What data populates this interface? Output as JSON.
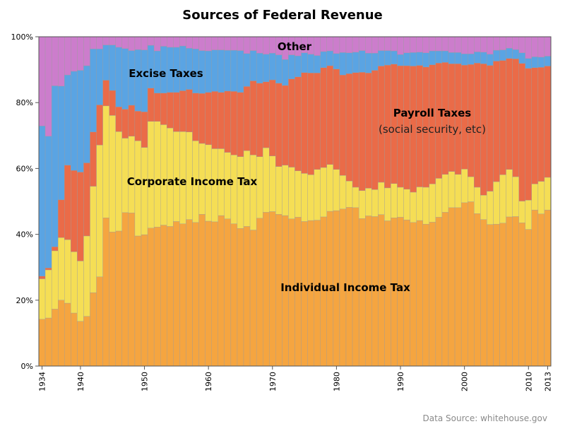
{
  "chart_data": {
    "type": "bar",
    "stacked": true,
    "title": "Sources of Federal Revenue",
    "source": "Data Source: whitehouse.gov",
    "x": [
      1934,
      1935,
      1936,
      1937,
      1938,
      1939,
      1940,
      1941,
      1942,
      1943,
      1944,
      1945,
      1946,
      1947,
      1948,
      1949,
      1950,
      1951,
      1952,
      1953,
      1954,
      1955,
      1956,
      1957,
      1958,
      1959,
      1960,
      1961,
      1962,
      1963,
      1964,
      1965,
      1966,
      1967,
      1968,
      1969,
      1970,
      1971,
      1972,
      1973,
      1974,
      1975,
      1976,
      1977,
      1978,
      1979,
      1980,
      1981,
      1982,
      1983,
      1984,
      1985,
      1986,
      1987,
      1988,
      1989,
      1990,
      1991,
      1992,
      1993,
      1994,
      1995,
      1996,
      1997,
      1998,
      1999,
      2000,
      2001,
      2002,
      2003,
      2004,
      2005,
      2006,
      2007,
      2008,
      2009,
      2010,
      2011,
      2012,
      2013
    ],
    "xticks": [
      "1934",
      "1940",
      "1950",
      "1960",
      "1970",
      "1980",
      "1990",
      "2000",
      "2010",
      "2013"
    ],
    "yticks": [
      "0%",
      "20%",
      "40%",
      "60%",
      "80%",
      "100%"
    ],
    "ylim": [
      0,
      100
    ],
    "series": [
      {
        "name": "Individual Income Tax",
        "color": "#f5a540",
        "values": [
          14.2,
          14.6,
          17.3,
          20.0,
          19.1,
          16.1,
          13.6,
          15.1,
          22.3,
          27.1,
          45.0,
          40.7,
          41.0,
          46.6,
          46.5,
          39.5,
          39.9,
          41.9,
          42.2,
          42.8,
          42.4,
          43.9,
          43.2,
          44.5,
          43.6,
          46.1,
          44.0,
          43.8,
          45.7,
          44.7,
          43.2,
          41.8,
          42.4,
          41.3,
          44.9,
          46.7,
          46.9,
          46.1,
          45.7,
          44.7,
          45.2,
          43.9,
          44.2,
          44.3,
          45.3,
          47.0,
          47.2,
          47.7,
          48.2,
          48.1,
          44.8,
          45.6,
          45.4,
          46.0,
          44.1,
          45.0,
          45.2,
          44.4,
          43.6,
          44.2,
          43.1,
          43.7,
          45.2,
          46.7,
          48.1,
          48.1,
          49.6,
          49.9,
          46.3,
          44.5,
          43.0,
          43.1,
          43.4,
          45.3,
          45.4,
          43.5,
          41.5,
          47.4,
          46.2,
          47.4
        ]
      },
      {
        "name": "Corporate Income Tax",
        "color": "#f5de55",
        "values": [
          12.3,
          14.6,
          17.7,
          19.0,
          19.3,
          18.6,
          18.3,
          24.4,
          32.3,
          40.0,
          34.0,
          35.4,
          30.2,
          22.6,
          23.3,
          28.9,
          26.5,
          32.4,
          32.1,
          30.5,
          29.9,
          27.3,
          28.0,
          26.6,
          24.8,
          21.5,
          23.2,
          22.2,
          20.3,
          20.2,
          20.9,
          21.8,
          23.0,
          22.8,
          18.7,
          19.6,
          16.9,
          14.5,
          15.3,
          15.7,
          14.1,
          14.6,
          13.9,
          15.4,
          15.0,
          14.2,
          12.5,
          10.2,
          8.0,
          6.2,
          8.5,
          8.4,
          8.2,
          9.8,
          10.0,
          10.4,
          9.1,
          9.3,
          9.2,
          10.2,
          11.2,
          11.6,
          11.8,
          11.5,
          11.0,
          10.1,
          10.2,
          7.6,
          8.0,
          7.4,
          10.1,
          12.9,
          14.7,
          14.4,
          12.1,
          6.6,
          8.9,
          7.9,
          9.9,
          9.9
        ]
      },
      {
        "name": "Payroll Taxes",
        "color": "#ea6b48",
        "values": [
          0.8,
          0.6,
          1.2,
          11.5,
          22.6,
          24.7,
          27.0,
          22.2,
          16.5,
          12.2,
          7.8,
          7.6,
          7.5,
          8.8,
          9.4,
          9.0,
          10.8,
          10.1,
          8.6,
          9.6,
          10.8,
          11.9,
          12.4,
          12.9,
          14.5,
          15.2,
          15.9,
          17.4,
          17.1,
          18.6,
          19.3,
          19.5,
          19.5,
          22.5,
          22.3,
          20.0,
          23.1,
          25.3,
          24.2,
          26.8,
          28.5,
          30.6,
          30.9,
          29.3,
          30.3,
          30.0,
          30.5,
          30.5,
          32.6,
          34.8,
          35.9,
          35.0,
          36.2,
          35.3,
          37.3,
          36.3,
          36.9,
          37.5,
          38.3,
          36.9,
          36.5,
          36.2,
          35.0,
          34.0,
          32.7,
          33.6,
          31.6,
          34.1,
          37.7,
          39.9,
          38.2,
          36.6,
          34.7,
          33.7,
          35.8,
          41.8,
          40.0,
          35.3,
          34.6,
          33.8
        ]
      },
      {
        "name": "Excise Taxes",
        "color": "#5aa4e3",
        "values": [
          45.6,
          40.0,
          48.9,
          34.5,
          27.4,
          30.1,
          30.9,
          29.5,
          25.2,
          17.0,
          10.7,
          13.8,
          18.1,
          18.4,
          16.6,
          18.7,
          18.8,
          13.0,
          12.8,
          14.2,
          13.7,
          13.7,
          13.6,
          12.5,
          13.4,
          13.0,
          12.6,
          12.6,
          12.9,
          12.4,
          12.5,
          12.7,
          10.0,
          9.2,
          9.1,
          8.4,
          8.1,
          8.6,
          7.9,
          7.3,
          6.4,
          6.0,
          5.7,
          5.3,
          4.9,
          4.5,
          4.7,
          6.8,
          6.3,
          6.2,
          6.6,
          6.0,
          5.2,
          4.7,
          4.4,
          4.0,
          3.4,
          3.9,
          4.1,
          4.0,
          4.3,
          4.2,
          3.7,
          3.5,
          3.4,
          3.4,
          3.4,
          3.2,
          3.4,
          3.5,
          3.4,
          3.3,
          3.2,
          3.1,
          2.8,
          3.2,
          3.0,
          3.3,
          3.1,
          3.0
        ]
      },
      {
        "name": "Other",
        "color": "#cc7dcc",
        "values": [
          27.1,
          30.2,
          14.9,
          15.0,
          11.6,
          10.5,
          10.2,
          8.8,
          3.7,
          3.7,
          2.5,
          2.5,
          3.2,
          3.6,
          4.2,
          3.9,
          4.0,
          2.6,
          4.3,
          2.9,
          3.2,
          3.2,
          2.8,
          3.5,
          3.7,
          4.2,
          4.3,
          4.0,
          4.0,
          4.1,
          4.1,
          4.2,
          5.1,
          4.2,
          5.0,
          5.3,
          5.0,
          5.5,
          6.9,
          5.5,
          5.8,
          4.9,
          5.3,
          5.7,
          4.5,
          4.3,
          5.1,
          4.8,
          4.9,
          4.7,
          4.2,
          5.0,
          5.0,
          4.2,
          4.2,
          4.3,
          5.4,
          4.9,
          4.8,
          4.7,
          4.9,
          4.3,
          4.3,
          4.3,
          4.8,
          4.8,
          5.2,
          5.2,
          4.6,
          4.7,
          5.3,
          4.1,
          4.0,
          3.5,
          3.9,
          4.9,
          6.6,
          6.1,
          6.2,
          5.9
        ]
      }
    ],
    "annotations": {
      "other": "Other",
      "excise": "Excise Taxes",
      "payroll": "Payroll Taxes",
      "payroll_sub": "(social security, etc)",
      "corporate": "Corporate Income Tax",
      "individual": "Individual Income Tax"
    },
    "grid": false,
    "legend": "none"
  }
}
